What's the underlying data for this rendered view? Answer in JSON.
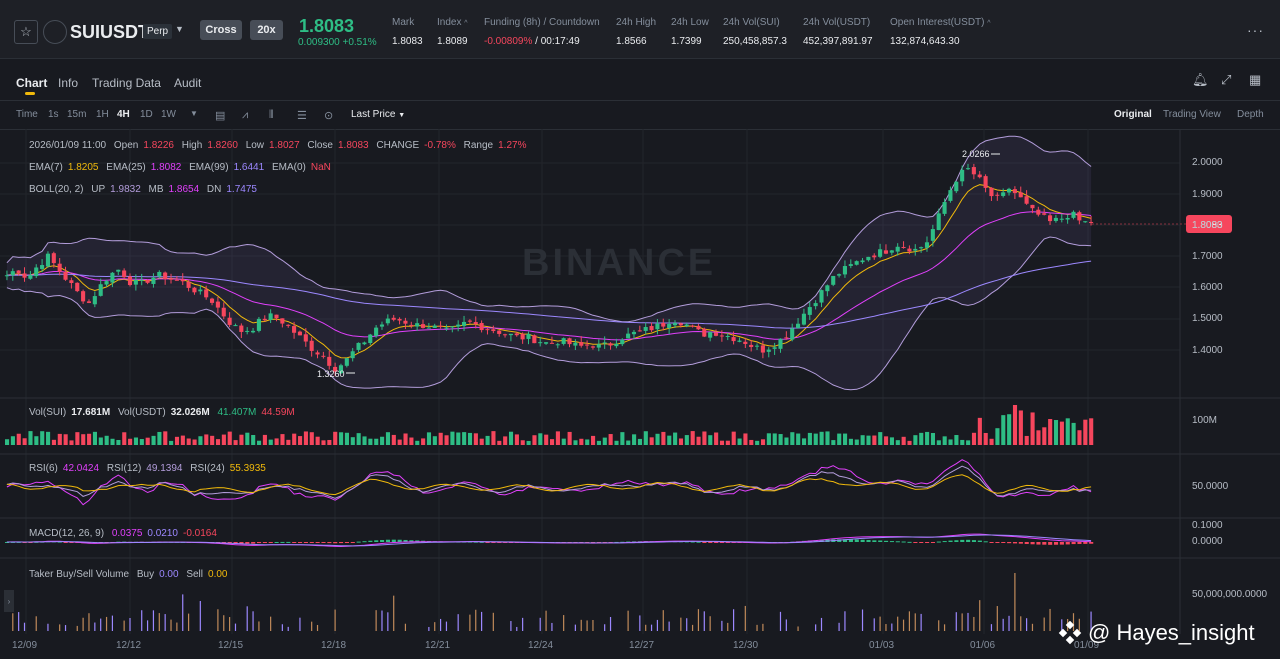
{
  "header": {
    "symbol": "SUIUSDT",
    "contract_type": "Perp",
    "margin_mode": "Cross",
    "leverage": "20x",
    "last_price": "1.8083",
    "price_change": "0.009300 +0.51%",
    "stats": [
      {
        "label": "Mark",
        "value": "1.8083"
      },
      {
        "label": "Index",
        "value": "1.8089"
      },
      {
        "label": "Funding (8h) / Countdown",
        "value_neg": "-0.00809%",
        "value_rest": " / 00:17:49"
      },
      {
        "label": "24h High",
        "value": "1.8566"
      },
      {
        "label": "24h Low",
        "value": "1.7399"
      },
      {
        "label": "24h Vol(SUI)",
        "value": "250,458,857.3"
      },
      {
        "label": "24h Vol(USDT)",
        "value": "452,397,891.97"
      },
      {
        "label": "Open Interest(USDT)",
        "value": "132,874,643.30"
      }
    ]
  },
  "tabs": [
    "Chart",
    "Info",
    "Trading Data",
    "Audit"
  ],
  "toolbar": {
    "time_label": "Time",
    "intervals": [
      "1s",
      "15m",
      "1H",
      "4H",
      "1D",
      "1W"
    ],
    "active_interval": "4H",
    "price_type": "Last Price",
    "views": [
      "Original",
      "Trading View",
      "Depth"
    ]
  },
  "legend": {
    "ohlc": {
      "date": "2026/01/09 11:00",
      "open_label": "Open",
      "open": "1.8226",
      "high_label": "High",
      "high": "1.8260",
      "low_label": "Low",
      "low": "1.8027",
      "close_label": "Close",
      "close": "1.8083",
      "change_label": "CHANGE",
      "change": "-0.78%",
      "range_label": "Range",
      "range": "1.27%"
    },
    "ema": {
      "ema7_label": "EMA(7)",
      "ema7": "1.8205",
      "ema25_label": "EMA(25)",
      "ema25": "1.8082",
      "ema99_label": "EMA(99)",
      "ema99": "1.6441",
      "ema0_label": "EMA(0)",
      "ema0": "NaN"
    },
    "boll": {
      "label": "BOLL(20, 2)",
      "up_label": "UP",
      "up": "1.9832",
      "mb_label": "MB",
      "mb": "1.8654",
      "dn_label": "DN",
      "dn": "1.7475"
    },
    "vol": {
      "sui_label": "Vol(SUI)",
      "sui": "17.681M",
      "usdt_label": "Vol(USDT)",
      "usdt": "32.026M",
      "ma1": "41.407M",
      "ma2": "44.59M"
    },
    "rsi": {
      "rsi6_label": "RSI(6)",
      "rsi6": "42.0424",
      "rsi12_label": "RSI(12)",
      "rsi12": "49.1394",
      "rsi24_label": "RSI(24)",
      "rsi24": "55.3935"
    },
    "macd": {
      "label": "MACD(12, 26, 9)",
      "v1": "0.0375",
      "v2": "0.0210",
      "v3": "-0.0164"
    },
    "taker": {
      "label": "Taker Buy/Sell Volume",
      "buy_label": "Buy",
      "buy": "0.00",
      "sell_label": "Sell",
      "sell": "0.00"
    }
  },
  "price_axis": [
    "2.0000",
    "1.9000",
    "1.8000",
    "1.7000",
    "1.6000",
    "1.5000",
    "1.4000"
  ],
  "current_price_tag": "1.8083",
  "max_marker": "2.0266",
  "min_marker": "1.3260",
  "vol_axis": "100M",
  "rsi_axis": "50.0000",
  "macd_axis": [
    "0.1000",
    "0.0000"
  ],
  "taker_axis": "50,000,000.0000",
  "dates": [
    "12/09",
    "12/12",
    "12/15",
    "12/18",
    "12/21",
    "12/24",
    "12/27",
    "12/30",
    "01/03",
    "01/06",
    "01/09"
  ],
  "brand_watermark": "BINANCE",
  "watermark": "@ Hayes_insight",
  "colors": {
    "up": "#2ebd85",
    "down": "#f6465d",
    "ema7": "#f0b90b",
    "ema25": "#e040fb",
    "ema99": "#9c88ff",
    "boll": "#b39ddb",
    "bg": "#181a20"
  },
  "chart_data": {
    "type": "candlestick",
    "title": "SUIUSDT 4H",
    "x_range": [
      "12/09",
      "01/09"
    ],
    "ylim": [
      1.3,
      2.05
    ],
    "close_path": [
      1.64,
      1.66,
      1.63,
      1.67,
      1.7,
      1.66,
      1.62,
      1.58,
      1.55,
      1.6,
      1.64,
      1.66,
      1.62,
      1.61,
      1.63,
      1.64,
      1.63,
      1.62,
      1.6,
      1.58,
      1.56,
      1.52,
      1.48,
      1.46,
      1.47,
      1.5,
      1.51,
      1.49,
      1.46,
      1.43,
      1.4,
      1.38,
      1.34,
      1.36,
      1.4,
      1.43,
      1.47,
      1.49,
      1.5,
      1.49,
      1.48,
      1.48,
      1.47,
      1.46,
      1.47,
      1.49,
      1.48,
      1.47,
      1.46,
      1.45,
      1.44,
      1.44,
      1.43,
      1.42,
      1.43,
      1.42,
      1.41,
      1.42,
      1.41,
      1.42,
      1.44,
      1.45,
      1.46,
      1.47,
      1.48,
      1.5,
      1.49,
      1.47,
      1.45,
      1.46,
      1.45,
      1.44,
      1.43,
      1.41,
      1.4,
      1.42,
      1.44,
      1.48,
      1.52,
      1.56,
      1.6,
      1.64,
      1.66,
      1.68,
      1.7,
      1.71,
      1.72,
      1.74,
      1.73,
      1.72,
      1.75,
      1.82,
      1.9,
      1.96,
      1.98,
      1.95,
      1.9,
      1.88,
      1.92,
      1.89,
      1.85,
      1.83,
      1.81,
      1.82,
      1.84,
      1.81,
      1.8083
    ]
  }
}
